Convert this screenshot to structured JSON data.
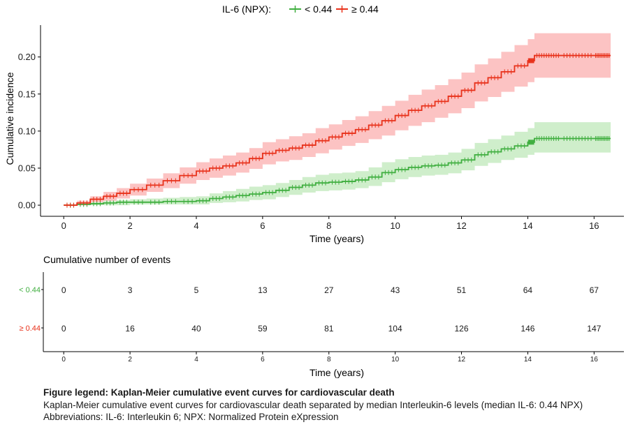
{
  "chart_data": {
    "type": "line",
    "legend": {
      "title": "IL-6 (NPX):",
      "position": "top",
      "entries": [
        {
          "name": "< 0.44",
          "color": "#3fae3f"
        },
        {
          "name": "≥ 0.44",
          "color": "#e8311a"
        }
      ]
    },
    "xlabel": "Time (years)",
    "ylabel": "Cumulative incidence",
    "xlim": [
      -0.7,
      16.9
    ],
    "ylim": [
      -0.015,
      0.243
    ],
    "xticks": [
      0,
      2,
      4,
      6,
      8,
      10,
      12,
      14,
      16
    ],
    "yticks": [
      0.0,
      0.05,
      0.1,
      0.15,
      0.2
    ],
    "ytick_labels": [
      "0.00",
      "0.05",
      "0.10",
      "0.15",
      "0.20"
    ],
    "grid": false,
    "series": [
      {
        "name": "< 0.44",
        "color": "#3fae3f",
        "band_color": "#cfeecb",
        "x": [
          0,
          0.4,
          0.8,
          1.2,
          1.6,
          2.0,
          2.5,
          3.0,
          3.5,
          4.0,
          4.4,
          4.8,
          5.2,
          5.6,
          6.0,
          6.4,
          6.8,
          7.2,
          7.6,
          8.0,
          8.4,
          8.8,
          9.2,
          9.6,
          10.0,
          10.4,
          10.8,
          11.2,
          11.6,
          12.0,
          12.4,
          12.8,
          13.2,
          13.6,
          14.0,
          14.2,
          15.0,
          16.0,
          16.5
        ],
        "y": [
          0.0,
          0.001,
          0.002,
          0.003,
          0.004,
          0.004,
          0.004,
          0.005,
          0.005,
          0.006,
          0.009,
          0.011,
          0.013,
          0.015,
          0.017,
          0.02,
          0.024,
          0.027,
          0.03,
          0.031,
          0.032,
          0.034,
          0.038,
          0.044,
          0.048,
          0.051,
          0.053,
          0.054,
          0.057,
          0.061,
          0.068,
          0.072,
          0.076,
          0.08,
          0.085,
          0.09,
          0.09,
          0.09,
          0.09
        ],
        "lower": [
          0.0,
          0.0,
          0.0,
          0.0,
          0.0,
          0.001,
          0.001,
          0.001,
          0.001,
          0.001,
          0.003,
          0.004,
          0.005,
          0.007,
          0.008,
          0.011,
          0.014,
          0.017,
          0.019,
          0.02,
          0.021,
          0.023,
          0.026,
          0.031,
          0.035,
          0.038,
          0.04,
          0.041,
          0.043,
          0.047,
          0.053,
          0.057,
          0.061,
          0.064,
          0.068,
          0.071,
          0.071,
          0.071,
          0.071
        ],
        "upper": [
          0.0,
          0.003,
          0.005,
          0.006,
          0.007,
          0.008,
          0.009,
          0.01,
          0.011,
          0.012,
          0.016,
          0.019,
          0.022,
          0.025,
          0.027,
          0.03,
          0.034,
          0.038,
          0.041,
          0.043,
          0.044,
          0.046,
          0.051,
          0.058,
          0.062,
          0.065,
          0.067,
          0.068,
          0.071,
          0.076,
          0.084,
          0.089,
          0.094,
          0.099,
          0.104,
          0.112,
          0.112,
          0.112,
          0.112
        ]
      },
      {
        "name": "≥ 0.44",
        "color": "#e8311a",
        "band_color": "#fcc3c3",
        "x": [
          0,
          0.4,
          0.8,
          1.2,
          1.6,
          2.0,
          2.5,
          3.0,
          3.5,
          4.0,
          4.4,
          4.8,
          5.2,
          5.6,
          6.0,
          6.4,
          6.8,
          7.2,
          7.6,
          8.0,
          8.4,
          8.8,
          9.2,
          9.6,
          10.0,
          10.4,
          10.8,
          11.2,
          11.6,
          12.0,
          12.4,
          12.8,
          13.2,
          13.6,
          14.0,
          14.2,
          15.0,
          16.0,
          16.5
        ],
        "y": [
          0.0,
          0.003,
          0.008,
          0.012,
          0.016,
          0.021,
          0.027,
          0.033,
          0.04,
          0.046,
          0.05,
          0.053,
          0.057,
          0.063,
          0.07,
          0.074,
          0.077,
          0.081,
          0.087,
          0.092,
          0.097,
          0.102,
          0.108,
          0.114,
          0.121,
          0.128,
          0.134,
          0.14,
          0.147,
          0.155,
          0.165,
          0.172,
          0.18,
          0.188,
          0.195,
          0.202,
          0.202,
          0.202,
          0.202
        ],
        "lower": [
          0.0,
          0.0,
          0.004,
          0.006,
          0.009,
          0.013,
          0.018,
          0.023,
          0.029,
          0.034,
          0.037,
          0.04,
          0.044,
          0.049,
          0.055,
          0.059,
          0.061,
          0.065,
          0.07,
          0.075,
          0.08,
          0.084,
          0.089,
          0.094,
          0.101,
          0.107,
          0.112,
          0.118,
          0.124,
          0.131,
          0.14,
          0.146,
          0.153,
          0.16,
          0.166,
          0.172,
          0.172,
          0.172,
          0.172
        ],
        "upper": [
          0.0,
          0.006,
          0.012,
          0.018,
          0.023,
          0.029,
          0.036,
          0.043,
          0.051,
          0.058,
          0.063,
          0.067,
          0.071,
          0.077,
          0.085,
          0.089,
          0.093,
          0.097,
          0.104,
          0.109,
          0.115,
          0.12,
          0.127,
          0.134,
          0.141,
          0.149,
          0.156,
          0.162,
          0.17,
          0.179,
          0.19,
          0.198,
          0.207,
          0.216,
          0.224,
          0.232,
          0.232,
          0.232,
          0.232
        ]
      }
    ],
    "risk_table": {
      "title": "Cumulative number of events",
      "xlabel": "Time (years)",
      "times": [
        0,
        2,
        4,
        6,
        8,
        10,
        12,
        14,
        16
      ],
      "rows": [
        {
          "label": "< 0.44",
          "color": "#3fae3f",
          "values": [
            0,
            3,
            5,
            13,
            27,
            43,
            51,
            64,
            67
          ]
        },
        {
          "label": "≥ 0.44",
          "color": "#e8311a",
          "values": [
            0,
            16,
            40,
            59,
            81,
            104,
            126,
            146,
            147
          ]
        }
      ]
    }
  },
  "caption": {
    "title": "Figure legend: Kaplan-Meier cumulative event curves for cardiovascular death",
    "description": "Kaplan-Meier cumulative event curves for cardiovascular death separated by median Interleukin-6  levels (median IL-6: 0.44 NPX)",
    "abbreviations": "Abbreviations: IL-6: Interleukin 6; NPX: Normalized Protein eXpression"
  }
}
